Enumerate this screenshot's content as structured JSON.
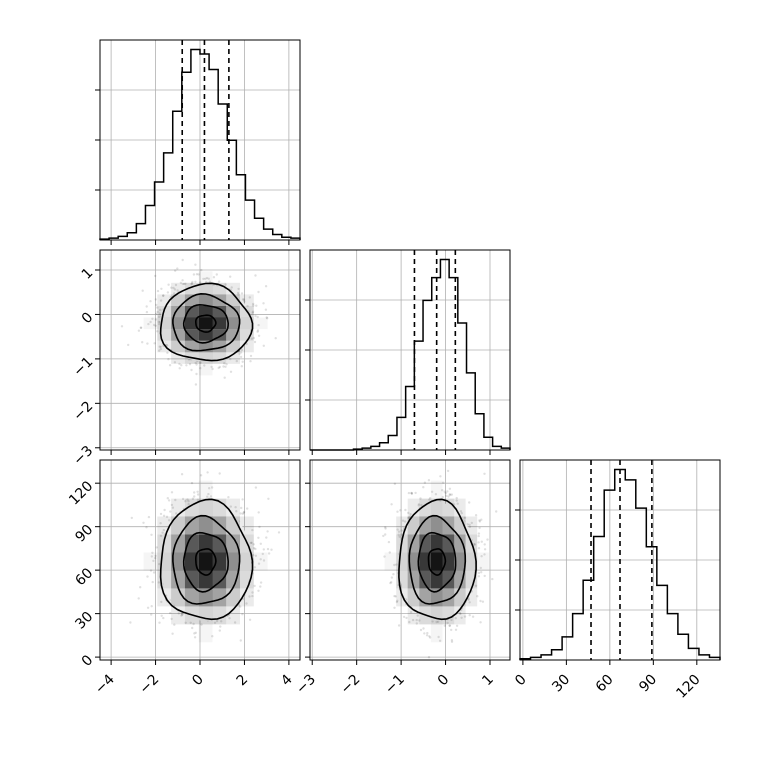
{
  "chart_data": {
    "type": "corner",
    "title": "",
    "grid": true,
    "parameters": [
      {
        "name": "",
        "mean": 0.25,
        "sd": 1.0,
        "range": [
          -4.5,
          4.5
        ],
        "ticks": [
          -4,
          -2,
          0,
          2,
          4
        ],
        "tick_labels": [
          "−4",
          "−2",
          "0",
          "2",
          "4"
        ],
        "quantiles": [
          -0.8,
          0.2,
          1.3
        ]
      },
      {
        "name": "",
        "mean": -0.2,
        "sd": 0.42,
        "range": [
          -3.05,
          1.45
        ],
        "ticks": [
          -3,
          -2,
          -1,
          0,
          1
        ],
        "tick_labels": [
          "−3",
          "−2",
          "−1",
          "0",
          "1"
        ],
        "quantiles": [
          -0.7,
          -0.2,
          0.22
        ]
      },
      {
        "name": "",
        "mean": 66,
        "sd": 20,
        "range": [
          -2,
          136
        ],
        "ticks": [
          0,
          30,
          60,
          90,
          120
        ],
        "tick_labels": [
          "0",
          "30",
          "60",
          "90",
          "120"
        ],
        "quantiles": [
          47,
          67,
          89
        ]
      }
    ],
    "histograms": [
      {
        "param": 0,
        "bins": [
          -4.5,
          4.5
        ],
        "counts": [
          1,
          2,
          4,
          8,
          18,
          38,
          64,
          96,
          142,
          185,
          210,
          205,
          188,
          150,
          110,
          72,
          44,
          24,
          12,
          6,
          3,
          2
        ]
      },
      {
        "param": 1,
        "bins": [
          -3.05,
          1.45
        ],
        "counts": [
          0,
          0,
          0,
          0,
          0,
          1,
          2,
          4,
          8,
          16,
          36,
          70,
          120,
          165,
          190,
          210,
          190,
          140,
          85,
          40,
          14,
          4,
          2
        ]
      },
      {
        "param": 2,
        "bins": [
          -2,
          136
        ],
        "counts": [
          1,
          2,
          4,
          8,
          18,
          36,
          62,
          96,
          132,
          148,
          140,
          118,
          88,
          58,
          36,
          20,
          9,
          4,
          2
        ]
      }
    ],
    "scatter_pairs": [
      {
        "x_param": 0,
        "y_param": 1,
        "peak": [
          0.2,
          -0.2
        ]
      },
      {
        "x_param": 0,
        "y_param": 2,
        "peak": [
          0.2,
          63
        ]
      },
      {
        "x_param": 1,
        "y_param": 2,
        "peak": [
          -0.2,
          63
        ]
      }
    ],
    "colors": {
      "points": "#000000",
      "lines": "#000000",
      "grid": "#b0b0b0"
    }
  }
}
